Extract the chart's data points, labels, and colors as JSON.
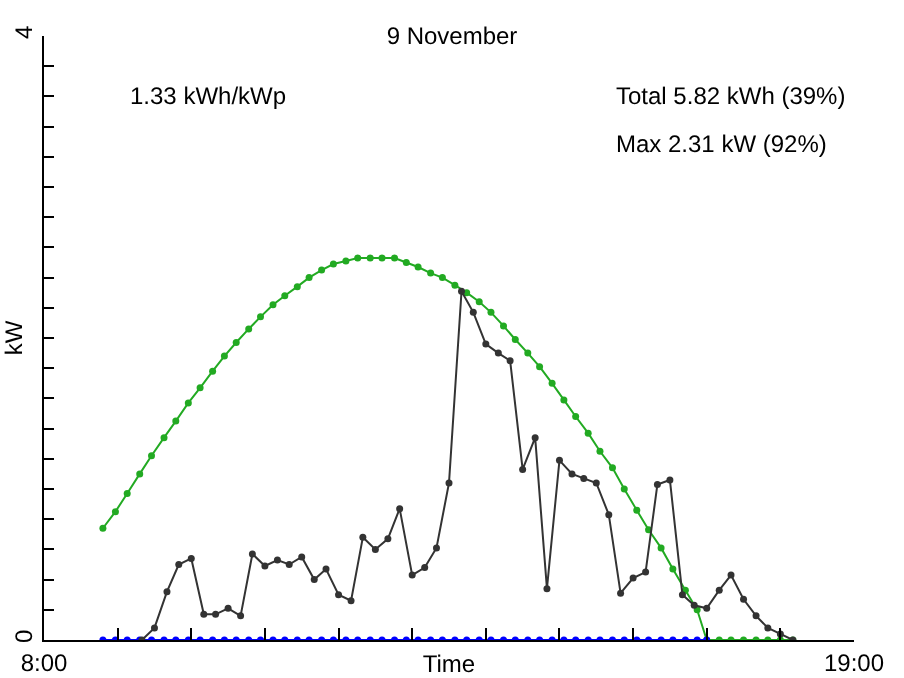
{
  "chart_data": {
    "type": "line",
    "title": "9 November",
    "xlabel": "Time",
    "ylabel": "kW",
    "annotations": [
      "1.33 kWh/kWp",
      "Total 5.82 kWh (39%)",
      "Max 2.31 kW (92%)"
    ],
    "xlim": [
      8,
      19
    ],
    "ylim": [
      0,
      4
    ],
    "xticks": [
      {
        "value": 8,
        "label": "8:00"
      },
      {
        "value": 9,
        "label": null
      },
      {
        "value": 10,
        "label": null
      },
      {
        "value": 11,
        "label": null
      },
      {
        "value": 12,
        "label": null
      },
      {
        "value": 13,
        "label": null
      },
      {
        "value": 14,
        "label": null
      },
      {
        "value": 15,
        "label": null
      },
      {
        "value": 16,
        "label": null
      },
      {
        "value": 17,
        "label": null
      },
      {
        "value": 18,
        "label": null
      },
      {
        "value": 19,
        "label": "19:00"
      }
    ],
    "yticks": [
      0,
      {
        "value": 0.2,
        "label": null
      },
      {
        "value": 0.4,
        "label": null
      },
      {
        "value": 0.6,
        "label": null
      },
      {
        "value": 0.8,
        "label": null
      },
      {
        "value": 1,
        "label": null
      },
      {
        "value": 1.2,
        "label": null
      },
      {
        "value": 1.4,
        "label": null
      },
      {
        "value": 1.6,
        "label": null
      },
      {
        "value": 1.8,
        "label": null
      },
      {
        "value": 2,
        "label": null
      },
      {
        "value": 2.2,
        "label": null
      },
      {
        "value": 2.4,
        "label": null
      },
      {
        "value": 2.6,
        "label": null
      },
      {
        "value": 2.8,
        "label": null
      },
      {
        "value": 3,
        "label": null
      },
      {
        "value": 3.2,
        "label": null
      },
      {
        "value": 3.4,
        "label": null
      },
      {
        "value": 3.6,
        "label": null
      },
      {
        "value": 3.8,
        "label": null
      },
      4
    ],
    "grid": false,
    "marker": "circle",
    "line_style": "solid",
    "series": [
      {
        "color": "#22aa22",
        "x": [
          8.8,
          8.97,
          9.13,
          9.3,
          9.46,
          9.63,
          9.79,
          9.96,
          10.12,
          10.29,
          10.45,
          10.61,
          10.78,
          10.94,
          11.11,
          11.27,
          11.44,
          11.6,
          11.77,
          11.93,
          12.1,
          12.26,
          12.43,
          12.59,
          12.76,
          12.92,
          13.08,
          13.25,
          13.41,
          13.58,
          13.74,
          13.91,
          14.07,
          14.24,
          14.4,
          14.57,
          14.73,
          14.9,
          15.06,
          15.22,
          15.39,
          15.55,
          15.72,
          15.88,
          16.05,
          16.21,
          16.38,
          16.54,
          16.71,
          16.87,
          17.0,
          17.17,
          17.33,
          17.5,
          17.67,
          17.83,
          18.0,
          18.17
        ],
        "values": [
          0.74,
          0.85,
          0.97,
          1.1,
          1.22,
          1.34,
          1.45,
          1.57,
          1.67,
          1.78,
          1.88,
          1.97,
          2.06,
          2.14,
          2.22,
          2.28,
          2.34,
          2.4,
          2.45,
          2.49,
          2.51,
          2.53,
          2.53,
          2.53,
          2.53,
          2.5,
          2.47,
          2.43,
          2.4,
          2.35,
          2.3,
          2.24,
          2.17,
          2.08,
          1.99,
          1.9,
          1.81,
          1.7,
          1.59,
          1.48,
          1.37,
          1.25,
          1.14,
          1.0,
          0.86,
          0.73,
          0.61,
          0.47,
          0.33,
          0.2,
          0,
          0,
          0,
          0,
          0,
          0,
          0,
          0
        ]
      },
      {
        "color": "#0000ff",
        "x": [
          8.8,
          8.97,
          9.13,
          9.3,
          9.46,
          9.63,
          9.79,
          9.96,
          10.12,
          10.29,
          10.45,
          10.61,
          10.78,
          10.94,
          11.11,
          11.27,
          11.44,
          11.6,
          11.77,
          11.93,
          12.1,
          12.26,
          12.43,
          12.59,
          12.76,
          12.92,
          13.08,
          13.25,
          13.41,
          13.58,
          13.74,
          13.91,
          14.07,
          14.24,
          14.4,
          14.57,
          14.73,
          14.9,
          15.06,
          15.22,
          15.39,
          15.55,
          15.72,
          15.88,
          16.05,
          16.21,
          16.38,
          16.54,
          16.71,
          16.87,
          17.0
        ],
        "values": [
          0,
          0,
          0,
          0,
          0,
          0,
          0,
          0,
          0,
          0,
          0,
          0,
          0,
          0,
          0,
          0,
          0,
          0,
          0,
          0,
          0,
          0,
          0,
          0,
          0,
          0,
          0,
          0,
          0,
          0,
          0,
          0,
          0,
          0,
          0,
          0,
          0,
          0,
          0,
          0,
          0,
          0,
          0,
          0,
          0,
          0,
          0,
          0,
          0,
          0,
          0
        ]
      },
      {
        "color": "#333333",
        "x": [
          9.33,
          9.5,
          9.67,
          9.83,
          10.0,
          10.17,
          10.33,
          10.5,
          10.67,
          10.83,
          11.0,
          11.17,
          11.33,
          11.5,
          11.67,
          11.83,
          12.0,
          12.17,
          12.33,
          12.5,
          12.67,
          12.83,
          13.0,
          13.17,
          13.33,
          13.5,
          13.67,
          13.83,
          14.0,
          14.17,
          14.33,
          14.5,
          14.67,
          14.83,
          15.0,
          15.17,
          15.33,
          15.5,
          15.67,
          15.83,
          16.0,
          16.17,
          16.33,
          16.5,
          16.67,
          16.83,
          17.0,
          17.17,
          17.33,
          17.5,
          17.67,
          17.83,
          18.0,
          18.17
        ],
        "values": [
          0,
          0.08,
          0.32,
          0.5,
          0.54,
          0.17,
          0.17,
          0.21,
          0.16,
          0.57,
          0.49,
          0.53,
          0.5,
          0.55,
          0.4,
          0.47,
          0.3,
          0.26,
          0.68,
          0.6,
          0.67,
          0.87,
          0.43,
          0.48,
          0.61,
          1.04,
          2.31,
          2.17,
          1.96,
          1.9,
          1.85,
          1.13,
          1.34,
          0.34,
          1.19,
          1.1,
          1.07,
          1.04,
          0.83,
          0.31,
          0.41,
          0.45,
          1.03,
          1.06,
          0.3,
          0.23,
          0.21,
          0.33,
          0.43,
          0.27,
          0.16,
          0.08,
          0.04,
          0
        ]
      }
    ]
  }
}
